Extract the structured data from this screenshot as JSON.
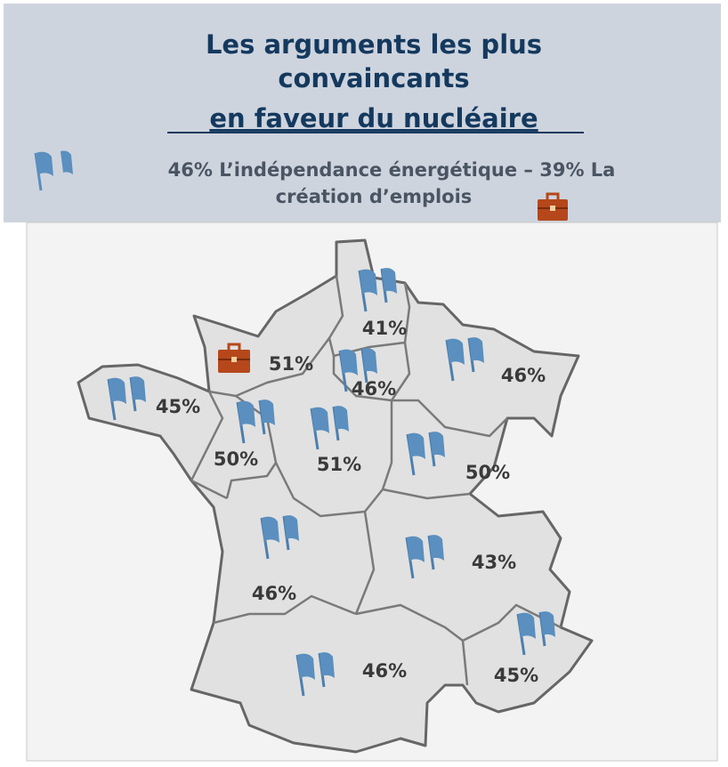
{
  "header": {
    "title_lines": [
      "Les arguments les plus",
      "convaincants"
    ],
    "title_underlined": "en faveur du nucléaire",
    "subtitle_lines": [
      "46% L’indépendance énergétique  – 39% La",
      "création d’emplois"
    ]
  },
  "map": {
    "regions": [
      {
        "label": "41%",
        "icon": "flag"
      },
      {
        "label": "51%",
        "icon": "briefcase"
      },
      {
        "label": "46%",
        "icon": "flag"
      },
      {
        "label": "46%",
        "icon": "flag"
      },
      {
        "label": "45%",
        "icon": "flag"
      },
      {
        "label": "50%",
        "icon": "flag"
      },
      {
        "label": "51%",
        "icon": "flag"
      },
      {
        "label": "50%",
        "icon": "flag"
      },
      {
        "label": "46%",
        "icon": "flag"
      },
      {
        "label": "43%",
        "icon": "flag"
      },
      {
        "label": "46%",
        "icon": "flag"
      },
      {
        "label": "45%",
        "icon": "flag"
      }
    ]
  }
}
